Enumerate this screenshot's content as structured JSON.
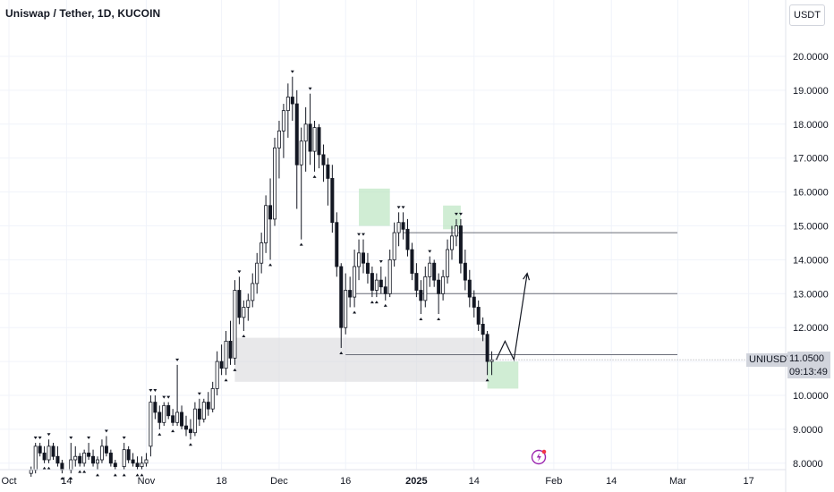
{
  "header": {
    "title": "Uniswap / Tether, 1D, KUCOIN"
  },
  "toolbar": {
    "currency": "USDT"
  },
  "price_label": {
    "symbol": "UNIUSDT",
    "value": "11.0500",
    "countdown": "09:13:49"
  },
  "colors": {
    "candle_up": "#ffffff",
    "candle_down": "#131722",
    "candle_border": "#131722",
    "zone_green": "#b7e4bd",
    "zone_gray": "#d8d8dc",
    "level_line": "#6a6d78",
    "axis_text": "#131722",
    "grid": "#f0f3fa"
  },
  "chart_data": {
    "type": "candlestick",
    "title": "Uniswap / Tether, 1D, KUCOIN",
    "xlabel": "",
    "ylabel": "",
    "ylim": [
      7.9,
      21.2
    ],
    "y_ticks": [
      "20.0000",
      "19.0000",
      "18.0000",
      "17.0000",
      "16.0000",
      "15.0000",
      "14.0000",
      "13.0000",
      "12.0000",
      "11.0000",
      "10.0000",
      "9.0000",
      "8.0000"
    ],
    "x_ticks": [
      {
        "label": "Oct",
        "day": 0
      },
      {
        "label": "14",
        "day": 13
      },
      {
        "label": "Nov",
        "day": 31
      },
      {
        "label": "18",
        "day": 48
      },
      {
        "label": "Dec",
        "day": 61
      },
      {
        "label": "16",
        "day": 76
      },
      {
        "label": "2025",
        "day": 92
      },
      {
        "label": "14",
        "day": 105
      },
      {
        "label": "Feb",
        "day": 123
      },
      {
        "label": "14",
        "day": 136
      },
      {
        "label": "Mar",
        "day": 151
      },
      {
        "label": "17",
        "day": 167
      }
    ],
    "candles": [
      [
        5,
        7.7,
        7.9,
        7.6,
        7.8
      ],
      [
        6,
        7.8,
        8.6,
        7.7,
        8.5
      ],
      [
        7,
        8.5,
        8.6,
        8.2,
        8.3
      ],
      [
        8,
        8.3,
        8.5,
        8.0,
        8.1
      ],
      [
        9,
        8.1,
        8.7,
        8.0,
        8.5
      ],
      [
        10,
        8.5,
        8.6,
        8.1,
        8.2
      ],
      [
        11,
        8.2,
        8.5,
        7.9,
        8.0
      ],
      [
        12,
        8.0,
        8.1,
        7.7,
        7.8
      ],
      [
        14,
        7.8,
        8.6,
        7.7,
        8.1
      ],
      [
        15,
        8.1,
        8.5,
        7.9,
        8.2
      ],
      [
        16,
        8.2,
        8.3,
        7.9,
        8.0
      ],
      [
        17,
        8.0,
        8.4,
        7.9,
        8.3
      ],
      [
        18,
        8.3,
        8.6,
        8.1,
        8.2
      ],
      [
        19,
        8.2,
        8.4,
        7.9,
        8.0
      ],
      [
        20,
        8.0,
        8.2,
        7.8,
        8.1
      ],
      [
        21,
        8.1,
        8.7,
        8.0,
        8.5
      ],
      [
        22,
        8.5,
        8.8,
        8.2,
        8.3
      ],
      [
        23,
        8.3,
        8.4,
        7.9,
        8.0
      ],
      [
        24,
        8.0,
        8.1,
        7.8,
        7.9
      ],
      [
        26,
        7.9,
        8.6,
        7.8,
        8.4
      ],
      [
        27,
        8.4,
        8.5,
        8.0,
        8.1
      ],
      [
        28,
        8.1,
        8.3,
        7.9,
        8.0
      ],
      [
        29,
        8.0,
        8.2,
        7.8,
        7.9
      ],
      [
        30,
        7.9,
        8.2,
        7.8,
        8.0
      ],
      [
        31,
        8.0,
        8.3,
        7.9,
        8.1
      ],
      [
        32,
        8.5,
        10.0,
        8.2,
        9.8
      ],
      [
        33,
        9.8,
        10.0,
        9.3,
        9.5
      ],
      [
        34,
        9.5,
        9.7,
        9.0,
        9.2
      ],
      [
        35,
        9.2,
        9.8,
        9.1,
        9.7
      ],
      [
        36,
        9.7,
        9.8,
        9.3,
        9.4
      ],
      [
        37,
        9.4,
        9.6,
        9.1,
        9.2
      ],
      [
        38,
        9.2,
        10.9,
        9.1,
        9.5
      ],
      [
        39,
        9.5,
        9.7,
        9.0,
        9.1
      ],
      [
        40,
        9.1,
        9.4,
        8.8,
        9.0
      ],
      [
        41,
        9.0,
        9.3,
        8.7,
        8.9
      ],
      [
        42,
        8.9,
        9.8,
        8.8,
        9.6
      ],
      [
        43,
        9.6,
        9.9,
        9.1,
        9.3
      ],
      [
        44,
        9.3,
        9.9,
        9.2,
        9.8
      ],
      [
        45,
        9.8,
        10.1,
        9.4,
        9.6
      ],
      [
        46,
        9.6,
        10.4,
        9.5,
        10.2
      ],
      [
        47,
        10.2,
        11.3,
        10.0,
        11.0
      ],
      [
        48,
        11.0,
        11.5,
        10.6,
        10.8
      ],
      [
        49,
        10.8,
        11.9,
        10.6,
        11.6
      ],
      [
        50,
        11.6,
        12.2,
        10.9,
        11.1
      ],
      [
        51,
        11.1,
        13.4,
        10.9,
        13.1
      ],
      [
        52,
        13.1,
        13.5,
        12.1,
        12.3
      ],
      [
        53,
        12.3,
        12.8,
        11.9,
        12.6
      ],
      [
        54,
        12.6,
        13.0,
        12.2,
        12.8
      ],
      [
        55,
        12.8,
        13.6,
        12.6,
        13.3
      ],
      [
        56,
        13.3,
        14.2,
        13.0,
        13.9
      ],
      [
        57,
        13.9,
        14.8,
        13.6,
        14.5
      ],
      [
        58,
        14.5,
        15.9,
        14.2,
        15.6
      ],
      [
        59,
        15.6,
        16.4,
        14.0,
        15.2
      ],
      [
        60,
        15.2,
        17.6,
        15.0,
        17.3
      ],
      [
        61,
        17.3,
        18.1,
        16.4,
        17.8
      ],
      [
        62,
        17.8,
        18.6,
        17.0,
        18.4
      ],
      [
        63,
        18.4,
        19.2,
        17.6,
        18.8
      ],
      [
        64,
        18.8,
        19.4,
        18.1,
        18.6
      ],
      [
        65,
        18.6,
        19.0,
        15.5,
        16.8
      ],
      [
        66,
        16.8,
        17.9,
        14.6,
        17.5
      ],
      [
        67,
        17.5,
        18.5,
        16.6,
        18.0
      ],
      [
        68,
        18.0,
        18.9,
        16.8,
        17.2
      ],
      [
        69,
        17.2,
        18.1,
        16.6,
        17.9
      ],
      [
        70,
        17.9,
        18.0,
        16.7,
        17.1
      ],
      [
        71,
        17.1,
        17.4,
        16.3,
        16.8
      ],
      [
        72,
        16.8,
        17.0,
        15.6,
        16.4
      ],
      [
        73,
        16.4,
        16.8,
        14.8,
        15.1
      ],
      [
        74,
        15.1,
        15.4,
        13.5,
        13.8
      ],
      [
        75,
        13.8,
        13.9,
        11.4,
        12.0
      ],
      [
        76,
        12.0,
        13.6,
        11.8,
        13.1
      ],
      [
        77,
        13.1,
        13.5,
        12.6,
        12.9
      ],
      [
        78,
        12.9,
        14.3,
        12.6,
        13.8
      ],
      [
        79,
        13.8,
        14.6,
        13.4,
        14.2
      ],
      [
        80,
        14.2,
        14.6,
        13.6,
        13.9
      ],
      [
        81,
        13.9,
        14.2,
        13.3,
        13.6
      ],
      [
        82,
        13.6,
        13.8,
        12.9,
        13.1
      ],
      [
        83,
        13.1,
        13.6,
        12.9,
        13.4
      ],
      [
        84,
        13.4,
        13.8,
        13.0,
        13.2
      ],
      [
        85,
        13.2,
        13.5,
        12.8,
        13.0
      ],
      [
        86,
        13.0,
        14.3,
        12.9,
        14.0
      ],
      [
        87,
        14.0,
        15.1,
        13.8,
        14.8
      ],
      [
        88,
        14.8,
        15.4,
        14.4,
        15.1
      ],
      [
        89,
        15.1,
        15.4,
        14.6,
        14.9
      ],
      [
        90,
        14.9,
        15.2,
        14.1,
        14.3
      ],
      [
        91,
        14.3,
        14.5,
        13.4,
        13.6
      ],
      [
        92,
        13.6,
        13.9,
        12.9,
        13.1
      ],
      [
        93,
        13.1,
        13.4,
        12.4,
        12.8
      ],
      [
        94,
        12.8,
        13.8,
        12.6,
        13.5
      ],
      [
        95,
        13.5,
        14.1,
        13.2,
        13.9
      ],
      [
        96,
        13.9,
        14.0,
        13.2,
        13.4
      ],
      [
        97,
        13.4,
        13.6,
        12.4,
        13.0
      ],
      [
        98,
        13.0,
        13.7,
        12.8,
        13.5
      ],
      [
        99,
        13.5,
        14.6,
        13.3,
        14.3
      ],
      [
        100,
        14.3,
        15.0,
        14.0,
        14.7
      ],
      [
        101,
        14.7,
        15.2,
        14.4,
        15.0
      ],
      [
        102,
        15.0,
        15.2,
        13.6,
        13.9
      ],
      [
        103,
        13.9,
        14.3,
        13.1,
        13.4
      ],
      [
        104,
        13.4,
        13.7,
        12.6,
        12.9
      ],
      [
        105,
        12.9,
        13.1,
        12.3,
        12.6
      ],
      [
        106,
        12.6,
        12.8,
        11.9,
        12.1
      ],
      [
        107,
        12.1,
        12.3,
        11.6,
        11.8
      ],
      [
        108,
        11.8,
        11.9,
        10.6,
        11.0
      ],
      [
        109,
        11.0,
        11.3,
        10.6,
        11.05
      ]
    ],
    "level_lines": [
      14.8,
      13.0,
      11.2
    ],
    "zones": [
      {
        "kind": "green",
        "day_from": 79,
        "day_to": 86,
        "price_from": 15.0,
        "price_to": 16.1
      },
      {
        "kind": "green",
        "day_from": 98,
        "day_to": 102,
        "price_from": 14.9,
        "price_to": 15.6
      },
      {
        "kind": "gray",
        "day_from": 51,
        "day_to": 108,
        "price_from": 10.4,
        "price_to": 11.7
      },
      {
        "kind": "green",
        "day_from": 108,
        "day_to": 115,
        "price_from": 10.2,
        "price_to": 11.0
      }
    ],
    "projection_path": [
      [
        110,
        11.05
      ],
      [
        112,
        11.6
      ],
      [
        114,
        11.05
      ],
      [
        117,
        13.6
      ]
    ],
    "last_price": 11.05
  }
}
